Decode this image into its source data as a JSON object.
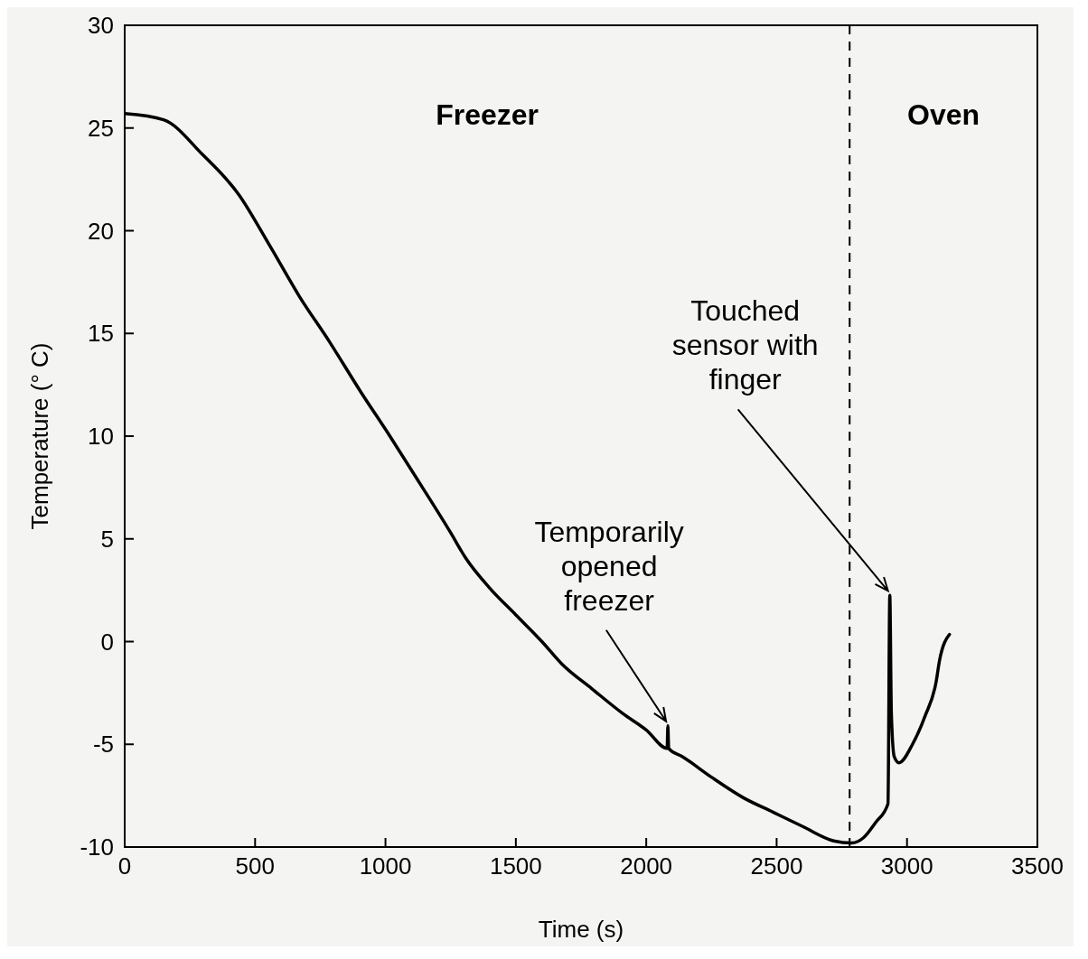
{
  "chart_data": {
    "type": "line",
    "xlabel": "Time (s)",
    "ylabel": "Temperature (° C)",
    "xlim": [
      0,
      3500
    ],
    "xticks": [
      0,
      500,
      1000,
      1500,
      2000,
      2500,
      3000,
      3500
    ],
    "ylim": [
      -10,
      30
    ],
    "yticks": [
      -10,
      -5,
      0,
      5,
      10,
      15,
      20,
      25,
      30
    ],
    "grid": false,
    "legend": false,
    "marker": "none",
    "line_style": "solid",
    "series": [
      {
        "color": "#000000",
        "x": [
          0,
          149,
          299,
          438,
          555,
          670,
          785,
          903,
          1017,
          1132,
          1250,
          1306,
          1400,
          1500,
          1600,
          1677,
          1792,
          1910,
          2000,
          2080,
          2083,
          2086,
          2139,
          2250,
          2372,
          2486,
          2600,
          2719,
          2788,
          2833,
          2880,
          2927,
          2934,
          2940,
          2951,
          2969,
          3021,
          3070,
          3111,
          3125,
          3163
        ],
        "values": [
          25.7,
          25.4,
          23.7,
          21.75,
          19.3,
          16.8,
          14.6,
          12.2,
          10.0,
          7.7,
          5.3,
          4.1,
          2.6,
          1.3,
          0.0,
          -1.1,
          -2.3,
          -3.5,
          -4.3,
          -5.2,
          -4.1,
          -5.2,
          -5.6,
          -6.6,
          -7.6,
          -8.3,
          -9.0,
          -9.7,
          -9.8,
          -9.55,
          -8.8,
          -7.9,
          2.25,
          -3.5,
          -5.6,
          -5.9,
          -5.0,
          -3.6,
          -2.0,
          -0.9,
          0.35
        ]
      }
    ],
    "ref_lines": [
      {
        "axis": "x",
        "value": 2780,
        "color": "#000000",
        "line_style": "dashed"
      }
    ],
    "annotations": [
      "Freezer",
      "Oven",
      {
        "text": "Temporarily opened freezer",
        "x": 2083,
        "y": -4.1
      },
      {
        "text": "Touched sensor with finger",
        "x": 2934,
        "y": 2.25
      }
    ]
  }
}
